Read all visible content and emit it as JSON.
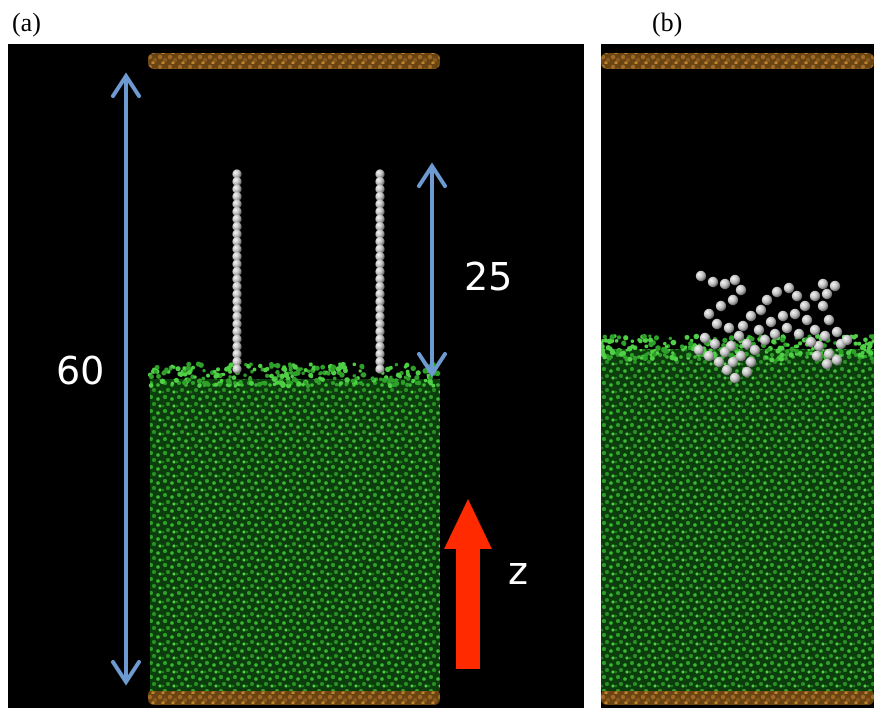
{
  "panels": {
    "a": {
      "label": "(a)"
    },
    "b": {
      "label": "(b)"
    }
  },
  "annotations": {
    "box_height_label": "60",
    "chain_length_label": "25",
    "axis_label": "z"
  },
  "colors": {
    "background": "#000000",
    "wall": "#8a5a1c",
    "wall_highlight": "#c0862e",
    "polymer_bead": "#2fa12a",
    "polymer_bead_highlight": "#6fe060",
    "chain_bead": "#c8c8c8",
    "dimension_arrow": "#6d9bd1",
    "axis_arrow": "#ff2a00"
  }
}
